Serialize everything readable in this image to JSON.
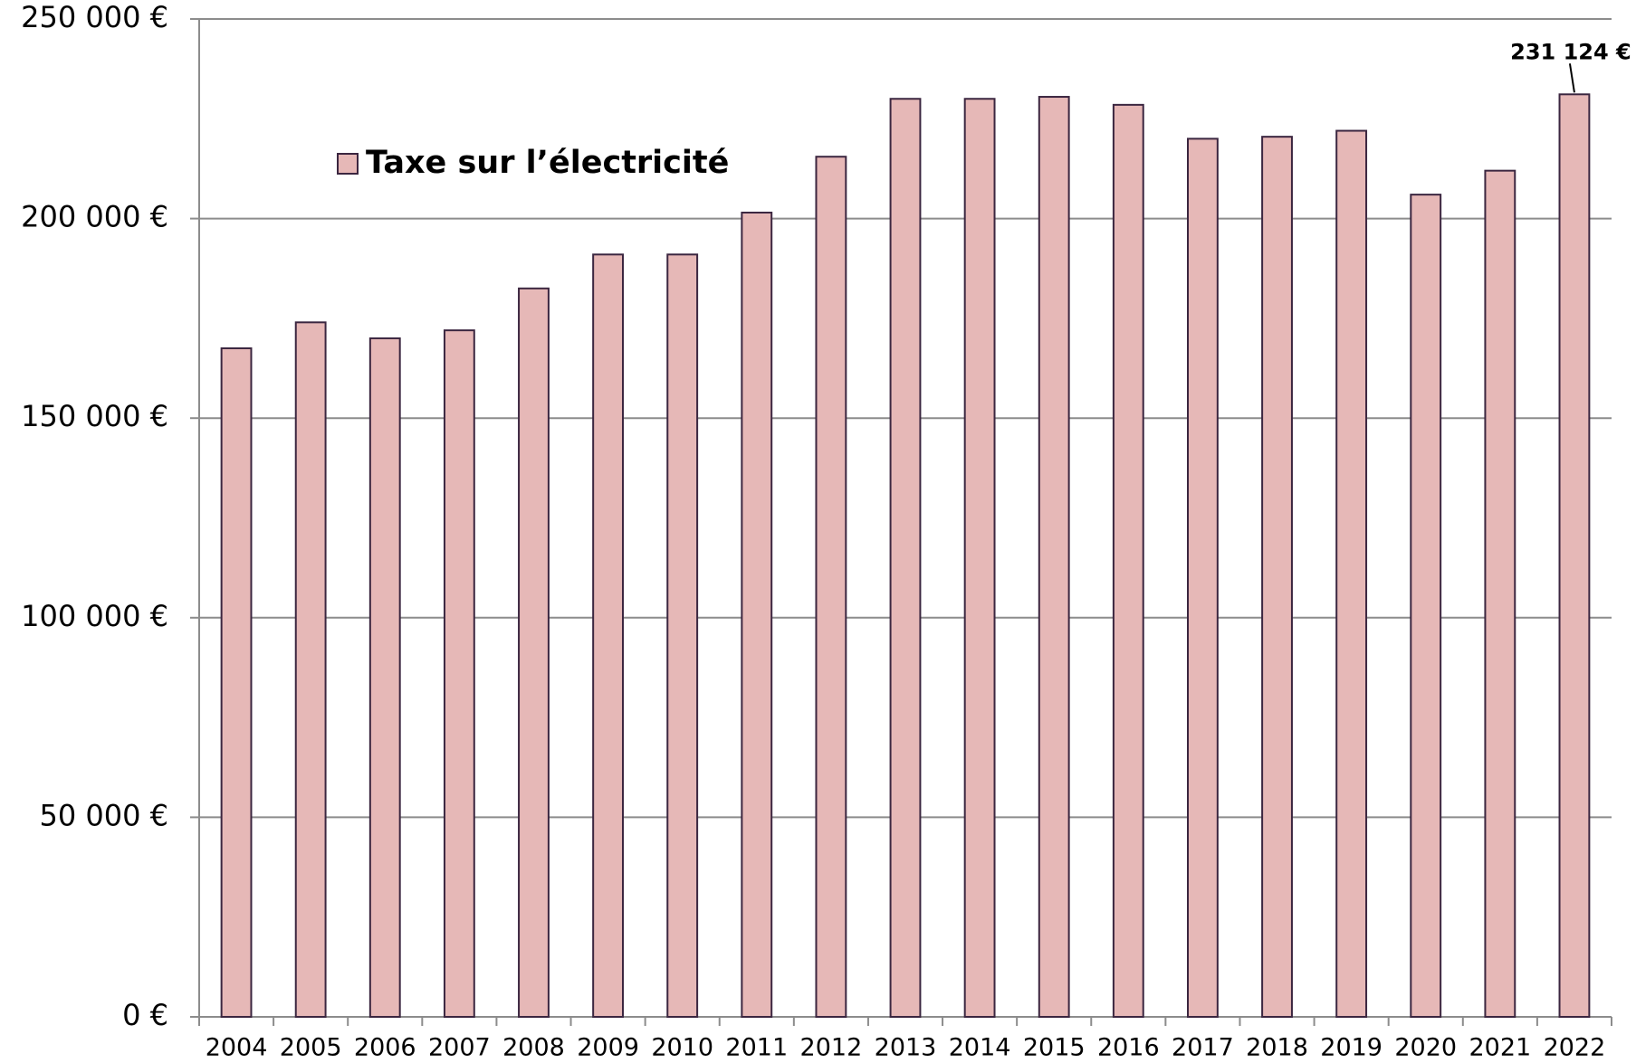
{
  "chart_data": {
    "type": "bar",
    "categories": [
      "2004",
      "2005",
      "2006",
      "2007",
      "2008",
      "2009",
      "2010",
      "2011",
      "2012",
      "2013",
      "2014",
      "2015",
      "2016",
      "2017",
      "2018",
      "2019",
      "2020",
      "2021",
      "2022"
    ],
    "series": [
      {
        "name": "Taxe sur l’électricité",
        "color": "#e6b8b7",
        "values": [
          167500,
          174000,
          170000,
          172000,
          182500,
          191000,
          191000,
          201500,
          215500,
          230000,
          230000,
          230500,
          228500,
          220000,
          220500,
          222000,
          206000,
          212000,
          231124
        ],
        "value_labels": [
          null,
          null,
          null,
          null,
          null,
          null,
          null,
          null,
          null,
          null,
          null,
          null,
          null,
          null,
          null,
          null,
          null,
          null,
          "231 124 €"
        ]
      }
    ],
    "ylim": [
      0,
      250000
    ],
    "yticks": [
      {
        "value": 0,
        "label": "0 €"
      },
      {
        "value": 50000,
        "label": "50 000 €"
      },
      {
        "value": 100000,
        "label": "100 000 €"
      },
      {
        "value": 150000,
        "label": "150 000 €"
      },
      {
        "value": 200000,
        "label": "200 000 €"
      },
      {
        "value": 250000,
        "label": "250 000 €"
      }
    ],
    "grid": true,
    "legend": "upper left"
  }
}
